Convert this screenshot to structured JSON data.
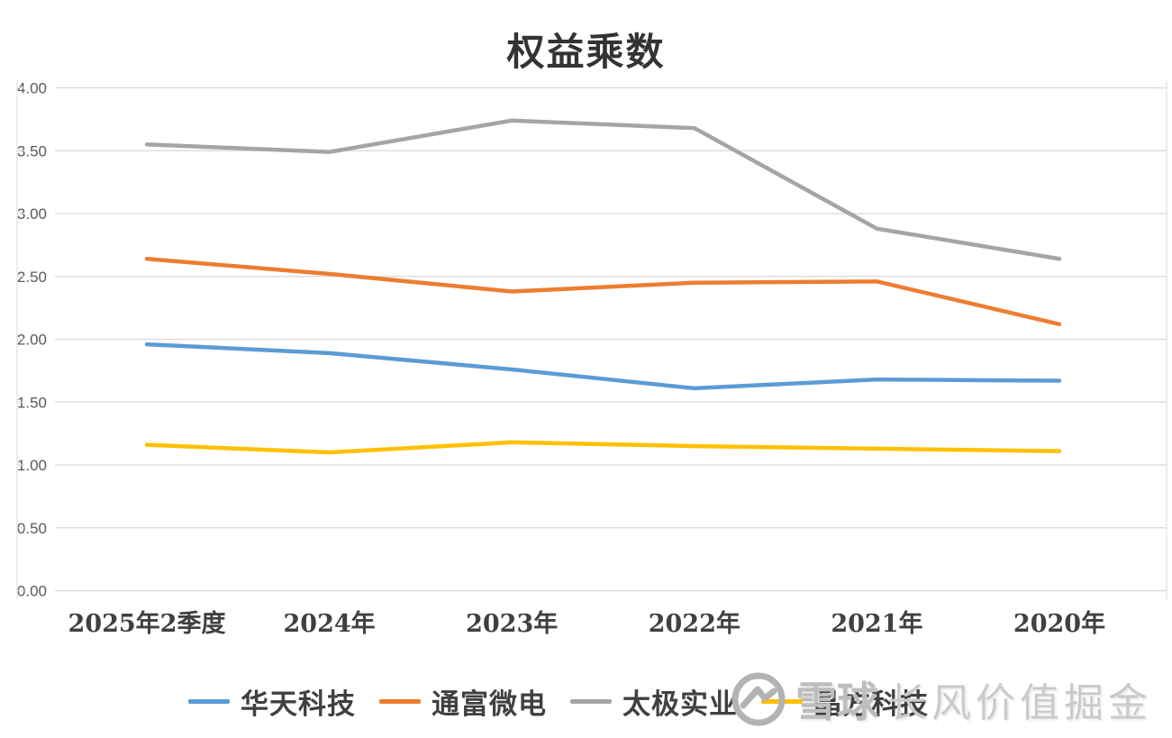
{
  "title": "权益乘数",
  "chart_data": {
    "type": "line",
    "title": "权益乘数",
    "categories": [
      "2025年2季度",
      "2024年",
      "2023年",
      "2022年",
      "2021年",
      "2020年"
    ],
    "series": [
      {
        "name": "华天科技",
        "color": "#5B9BD5",
        "values": [
          1.96,
          1.89,
          1.76,
          1.61,
          1.68,
          1.67
        ]
      },
      {
        "name": "通富微电",
        "color": "#ED7D31",
        "values": [
          2.64,
          2.52,
          2.38,
          2.45,
          2.46,
          2.12
        ]
      },
      {
        "name": "太极实业",
        "color": "#A5A5A5",
        "values": [
          3.55,
          3.49,
          3.74,
          3.68,
          2.88,
          2.64
        ]
      },
      {
        "name": "晶方科技",
        "color": "#FFC000",
        "values": [
          1.16,
          1.1,
          1.18,
          1.15,
          1.13,
          1.11
        ]
      }
    ],
    "ylim": [
      0,
      4
    ],
    "ytick_step": 0.5,
    "ytick_labels": [
      "0.00",
      "0.50",
      "1.00",
      "1.50",
      "2.00",
      "2.50",
      "3.00",
      "3.50",
      "4.00"
    ],
    "grid": true,
    "gridline_color": "#D9D9D9",
    "legend_position": "bottom"
  },
  "watermark": {
    "brand": "雪球",
    "author": "长风价值掘金",
    "logo": "xueqiu-snowball-logo"
  }
}
